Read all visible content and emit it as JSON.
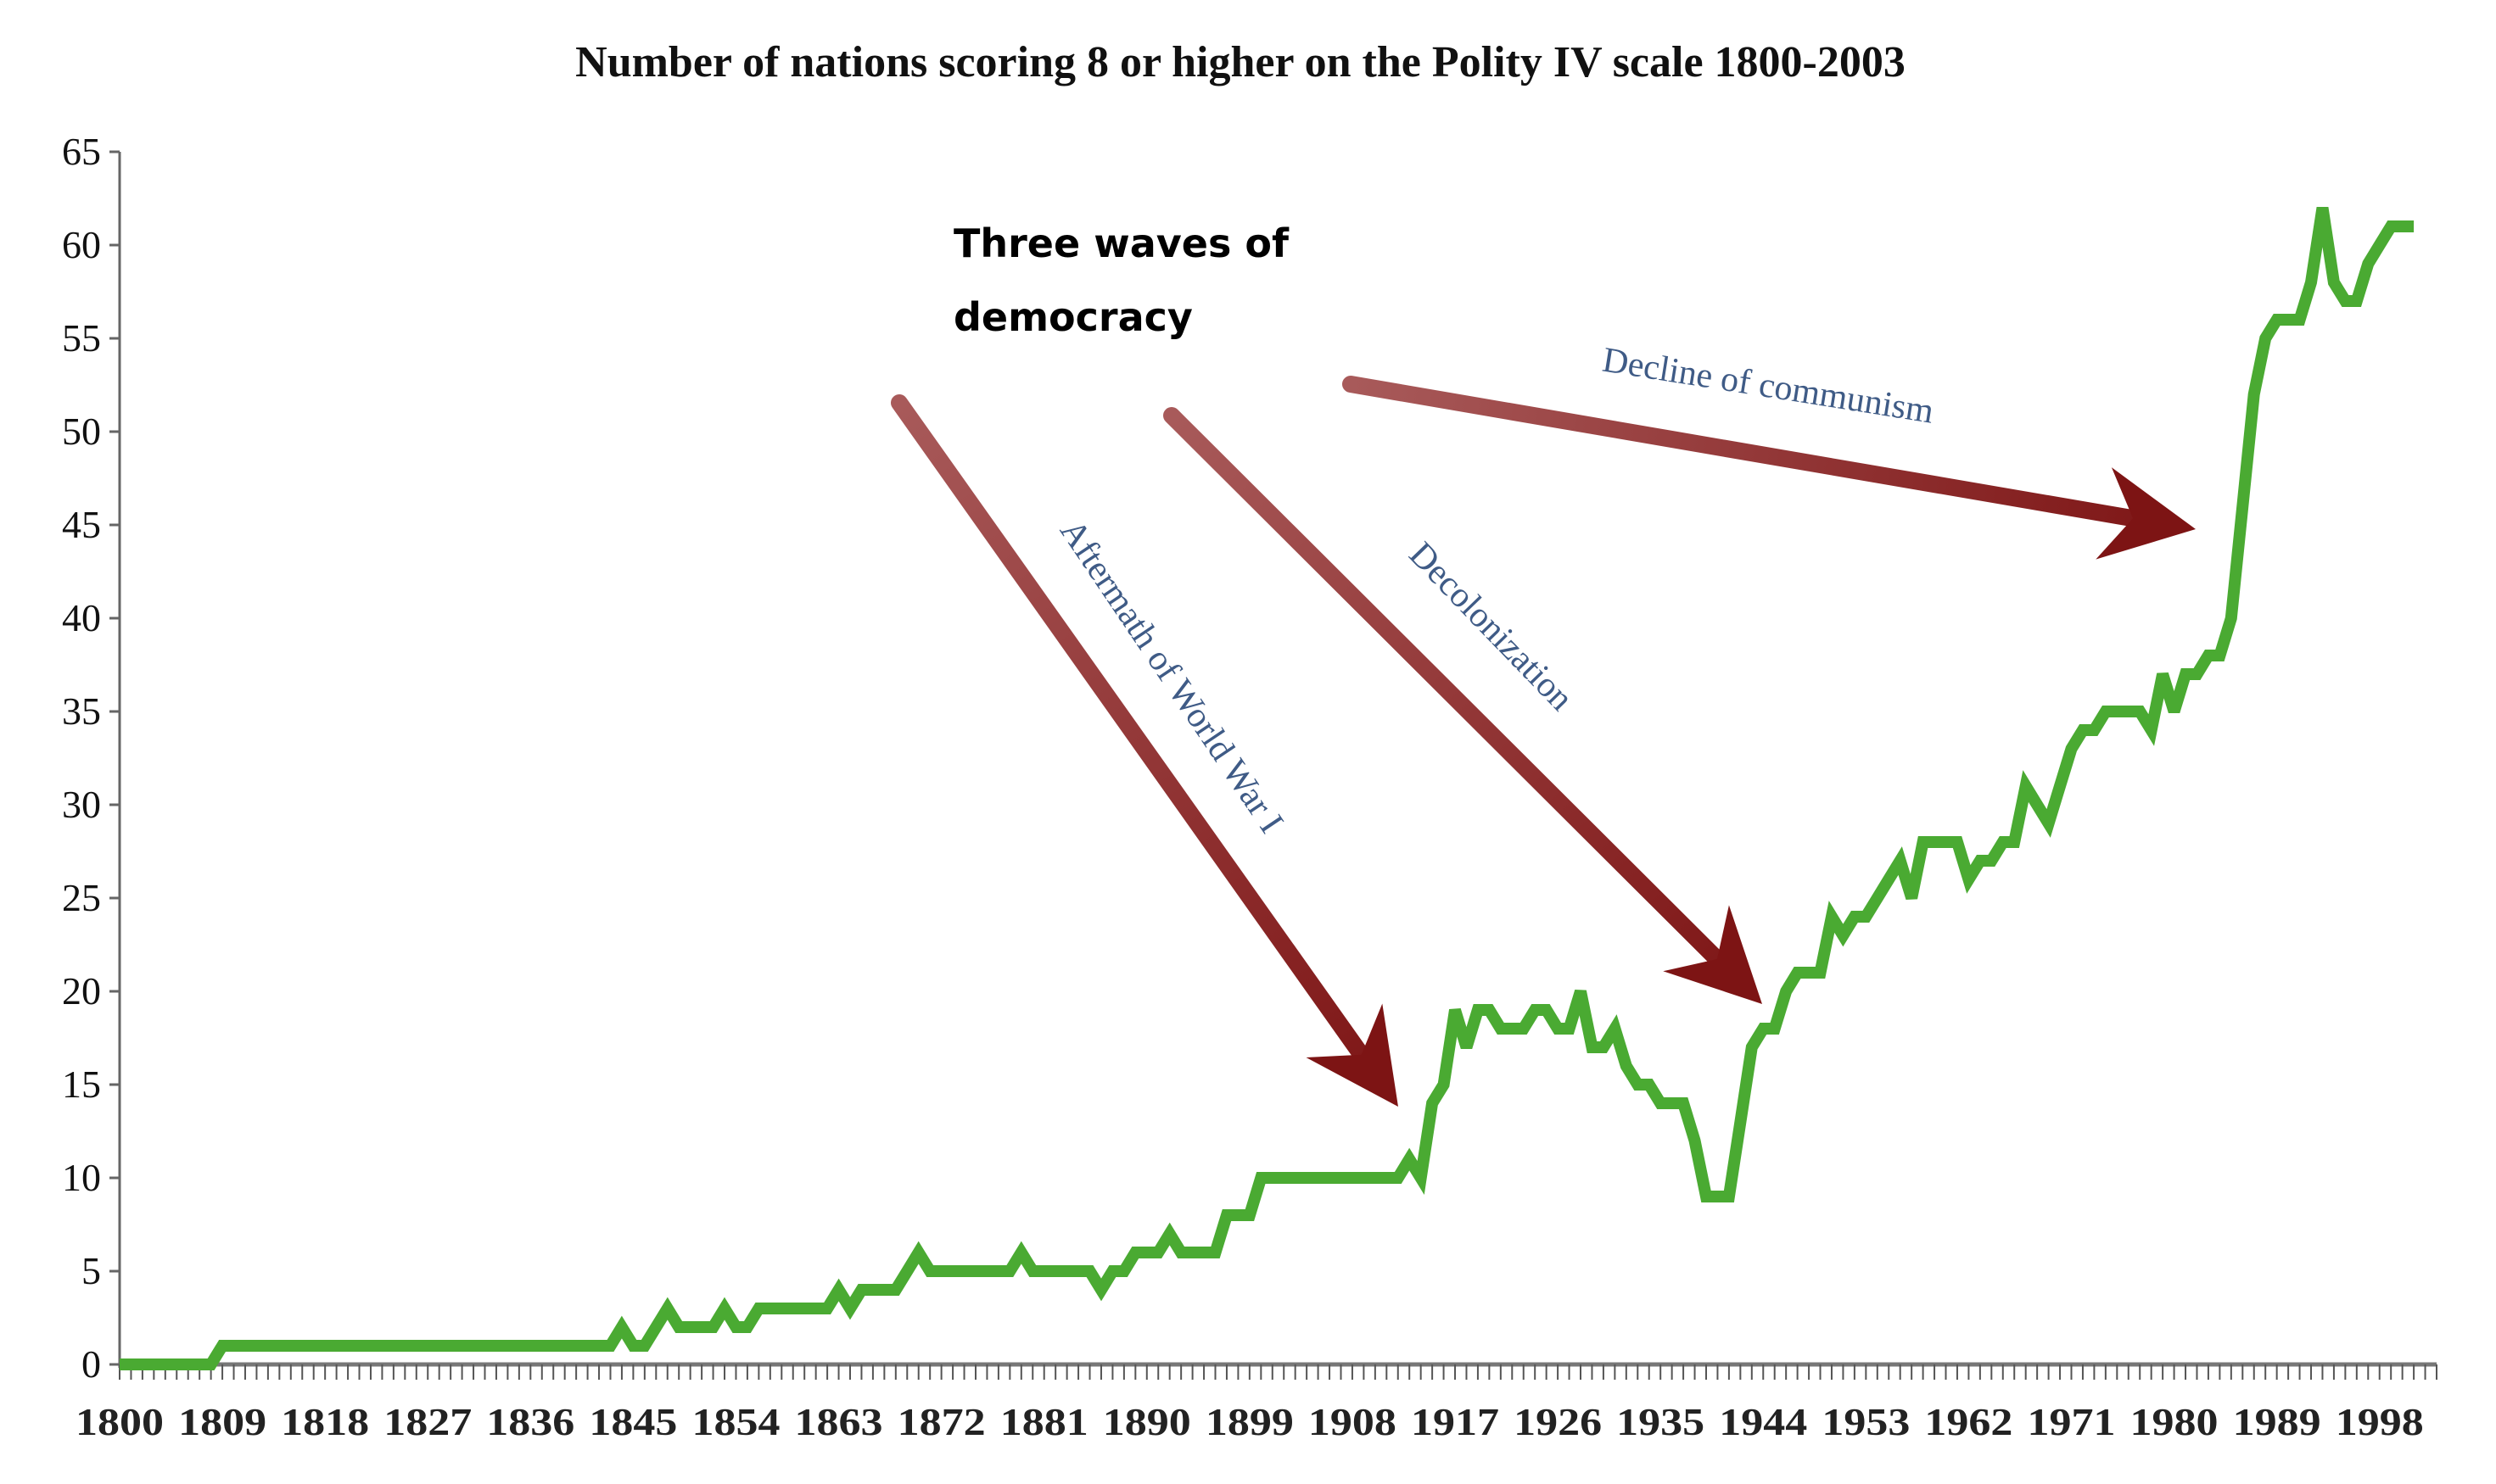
{
  "chart_data": {
    "type": "line",
    "title": "Number of nations scoring 8 or higher on the Polity IV scale 1800-2003",
    "xlabel": "",
    "ylabel": "",
    "x_start": 1800,
    "xlim": [
      1800,
      2003
    ],
    "ylim": [
      0,
      65
    ],
    "y_ticks": [
      0,
      5,
      10,
      15,
      20,
      25,
      30,
      35,
      40,
      45,
      50,
      55,
      60,
      65
    ],
    "x_tick_labels": [
      "1800",
      "1809",
      "1818",
      "1827",
      "1836",
      "1845",
      "1854",
      "1863",
      "1872",
      "1881",
      "1890",
      "1899",
      "1908",
      "1917",
      "1926",
      "1935",
      "1944",
      "1953",
      "1962",
      "1971",
      "1980",
      "1989",
      "1998"
    ],
    "grid": false,
    "series": [
      {
        "name": "Nations scoring 8+",
        "color": "#4aaa32",
        "values": [
          0,
          0,
          0,
          0,
          0,
          0,
          0,
          0,
          0,
          1,
          1,
          1,
          1,
          1,
          1,
          1,
          1,
          1,
          1,
          1,
          1,
          1,
          1,
          1,
          1,
          1,
          1,
          1,
          1,
          1,
          1,
          1,
          1,
          1,
          1,
          1,
          1,
          1,
          1,
          1,
          1,
          1,
          1,
          1,
          2,
          1,
          1,
          2,
          3,
          2,
          2,
          2,
          2,
          3,
          2,
          2,
          3,
          3,
          3,
          3,
          3,
          3,
          3,
          4,
          3,
          4,
          4,
          4,
          4,
          5,
          6,
          5,
          5,
          5,
          5,
          5,
          5,
          5,
          5,
          6,
          5,
          5,
          5,
          5,
          5,
          5,
          4,
          5,
          5,
          6,
          6,
          6,
          7,
          6,
          6,
          6,
          6,
          8,
          8,
          8,
          10,
          10,
          10,
          10,
          10,
          10,
          10,
          10,
          10,
          10,
          10,
          10,
          10,
          11,
          10,
          14,
          15,
          19,
          17,
          19,
          19,
          18,
          18,
          18,
          19,
          19,
          18,
          18,
          20,
          17,
          17,
          18,
          16,
          15,
          15,
          14,
          14,
          14,
          12,
          9,
          9,
          9,
          13,
          17,
          18,
          18,
          20,
          21,
          21,
          21,
          24,
          23,
          24,
          24,
          25,
          26,
          27,
          25,
          28,
          28,
          28,
          28,
          26,
          27,
          27,
          28,
          28,
          31,
          30,
          29,
          31,
          33,
          34,
          34,
          35,
          35,
          35,
          35,
          34,
          37,
          35,
          37,
          37,
          38,
          38,
          40,
          46,
          52,
          55,
          56,
          56,
          56,
          58,
          62,
          58,
          57,
          57,
          59,
          60,
          61,
          61,
          61
        ]
      }
    ],
    "annotations": {
      "heading_line1": "Three waves of",
      "heading_line2": "democracy",
      "arrow1_label": "Aftermath of World War I",
      "arrow2_label": "Decolonization",
      "arrow3_label": "Decline of communism",
      "arrow_color": "#7d1414"
    }
  }
}
